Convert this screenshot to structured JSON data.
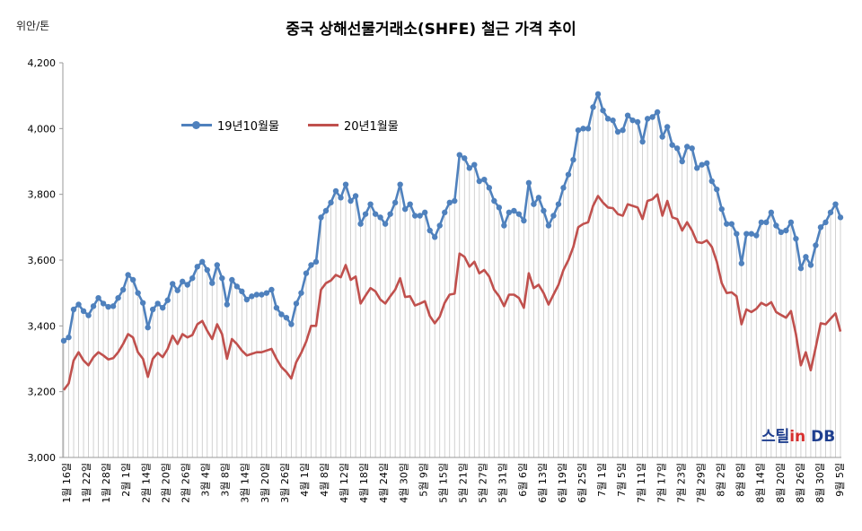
{
  "chart_data": {
    "type": "line",
    "title": "중국 상해선물거래소(SHFE)  철근 가격 추이",
    "unit": "위안/톤",
    "ylim": [
      3000,
      4200
    ],
    "yticks": [
      "3,000",
      "3,200",
      "3,400",
      "3,600",
      "3,800",
      "4,000",
      "4,200"
    ],
    "x_labels": [
      "1월 16일",
      "1월 22일",
      "1월 28일",
      "2월 1일",
      "2월 14일",
      "2월 20일",
      "2월 26일",
      "3월 4일",
      "3월 8일",
      "3월 14일",
      "3월 20일",
      "3월 26일",
      "4월 1일",
      "4월 8일",
      "4월 12일",
      "4월 18일",
      "4월 24일",
      "4월 30일",
      "5월 9일",
      "5월 15일",
      "5월 21일",
      "5월 27일",
      "5월 31일",
      "6월 6일",
      "6월 13일",
      "6월 19일",
      "6월 25일",
      "7월 1일",
      "7월 5일",
      "7월 11일",
      "7월 17일",
      "7월 23일",
      "7월 29일",
      "8월 2일",
      "8월 8일",
      "8월 14일",
      "8월 20일",
      "8월 26일",
      "8월 30일",
      "9월 5일"
    ],
    "grid": "drop-lines",
    "legend_position": "top-left",
    "series": [
      {
        "name": "19년10월물",
        "color": "#4F81BD",
        "markers": true,
        "values": [
          3355,
          3365,
          3450,
          3465,
          3445,
          3432,
          3460,
          3485,
          3468,
          3458,
          3460,
          3485,
          3510,
          3555,
          3540,
          3500,
          3470,
          3395,
          3450,
          3468,
          3455,
          3478,
          3528,
          3508,
          3535,
          3525,
          3545,
          3580,
          3595,
          3570,
          3530,
          3585,
          3545,
          3465,
          3540,
          3520,
          3505,
          3480,
          3490,
          3495,
          3495,
          3500,
          3510,
          3455,
          3435,
          3425,
          3405,
          3468,
          3500,
          3560,
          3585,
          3595,
          3730,
          3750,
          3775,
          3810,
          3790,
          3830,
          3780,
          3795,
          3710,
          3740,
          3770,
          3740,
          3730,
          3710,
          3740,
          3775,
          3830,
          3755,
          3770,
          3735,
          3735,
          3745,
          3690,
          3670,
          3705,
          3745,
          3775,
          3780,
          3920,
          3910,
          3880,
          3890,
          3840,
          3845,
          3820,
          3780,
          3760,
          3705,
          3745,
          3750,
          3740,
          3720,
          3835,
          3770,
          3790,
          3750,
          3705,
          3735,
          3770,
          3820,
          3860,
          3905,
          3995,
          4000,
          4000,
          4065,
          4105,
          4055,
          4030,
          4025,
          3990,
          3995,
          4040,
          4025,
          4020,
          3960,
          4030,
          4035,
          4050,
          3975,
          4005,
          3950,
          3940,
          3900,
          3945,
          3940,
          3880,
          3890,
          3895,
          3840,
          3815,
          3755,
          3710,
          3710,
          3680,
          3590,
          3680,
          3680,
          3675,
          3715,
          3715,
          3745,
          3705,
          3685,
          3690,
          3715,
          3665,
          3575,
          3610,
          3585,
          3645,
          3700,
          3715,
          3745,
          3770,
          3730
        ]
      },
      {
        "name": "20년1월물",
        "color": "#C0504D",
        "markers": false,
        "values": [
          3205,
          3225,
          3295,
          3320,
          3295,
          3280,
          3305,
          3320,
          3310,
          3298,
          3302,
          3320,
          3345,
          3375,
          3365,
          3320,
          3300,
          3245,
          3300,
          3318,
          3305,
          3330,
          3370,
          3345,
          3375,
          3365,
          3372,
          3405,
          3415,
          3385,
          3360,
          3405,
          3375,
          3300,
          3360,
          3345,
          3325,
          3310,
          3315,
          3320,
          3320,
          3325,
          3330,
          3300,
          3275,
          3260,
          3240,
          3290,
          3318,
          3352,
          3400,
          3400,
          3510,
          3530,
          3538,
          3555,
          3548,
          3585,
          3540,
          3550,
          3468,
          3492,
          3515,
          3505,
          3480,
          3468,
          3490,
          3510,
          3545,
          3488,
          3490,
          3462,
          3468,
          3475,
          3430,
          3408,
          3428,
          3470,
          3495,
          3498,
          3620,
          3610,
          3580,
          3595,
          3560,
          3570,
          3550,
          3510,
          3490,
          3460,
          3495,
          3495,
          3485,
          3455,
          3560,
          3515,
          3525,
          3500,
          3465,
          3495,
          3525,
          3570,
          3600,
          3640,
          3700,
          3710,
          3715,
          3765,
          3795,
          3775,
          3760,
          3758,
          3740,
          3735,
          3770,
          3765,
          3760,
          3725,
          3780,
          3785,
          3800,
          3735,
          3780,
          3730,
          3725,
          3690,
          3715,
          3690,
          3655,
          3652,
          3660,
          3640,
          3595,
          3530,
          3500,
          3502,
          3490,
          3405,
          3450,
          3442,
          3452,
          3470,
          3462,
          3472,
          3442,
          3433,
          3425,
          3445,
          3375,
          3280,
          3320,
          3265,
          3335,
          3408,
          3405,
          3422,
          3438,
          3383
        ]
      }
    ]
  }
}
